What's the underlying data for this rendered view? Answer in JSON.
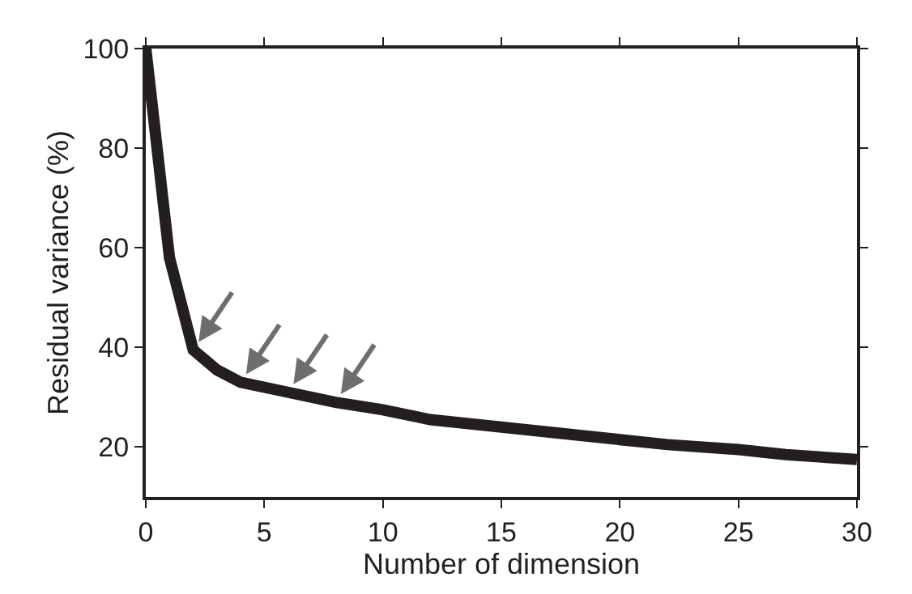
{
  "chart_data": {
    "type": "line",
    "xlabel": "Number of dimension",
    "ylabel": "Residual variance (%)",
    "x": [
      0,
      1,
      2,
      3,
      4,
      6,
      8,
      10,
      12,
      15,
      18,
      20,
      22,
      25,
      27,
      30
    ],
    "series": [
      {
        "color": "#231f20",
        "values": [
          100,
          58,
          39.5,
          35.5,
          33,
          31,
          29,
          27.5,
          25.5,
          24,
          22.5,
          21.5,
          20.5,
          19.5,
          18.5,
          17.5
        ]
      }
    ],
    "xlim": [
      0,
      30
    ],
    "xticks": [
      0,
      5,
      10,
      15,
      20,
      25,
      30
    ],
    "ylim": [
      10,
      100
    ],
    "yticks": [
      20,
      40,
      60,
      80,
      100
    ],
    "marker": "none",
    "line_style": "solid"
  }
}
